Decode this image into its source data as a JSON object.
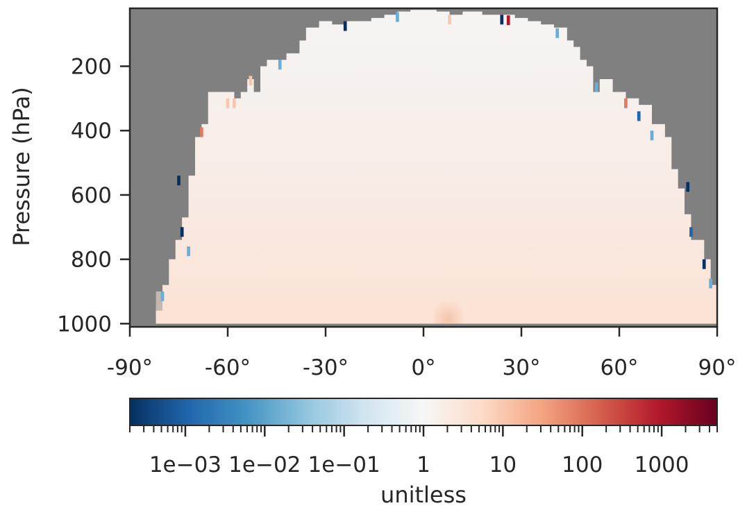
{
  "chart_data": {
    "type": "heatmap",
    "title": "",
    "xlabel": "",
    "ylabel": "Pressure (hPa)",
    "x_ticks": [
      {
        "value": -90,
        "label": "-90°"
      },
      {
        "value": -60,
        "label": "-60°"
      },
      {
        "value": -30,
        "label": "-30°"
      },
      {
        "value": 0,
        "label": "0°"
      },
      {
        "value": 30,
        "label": "30°"
      },
      {
        "value": 60,
        "label": "60°"
      },
      {
        "value": 90,
        "label": "90°"
      }
    ],
    "y_ticks": [
      {
        "value": 200,
        "label": "200"
      },
      {
        "value": 400,
        "label": "400"
      },
      {
        "value": 600,
        "label": "600"
      },
      {
        "value": 800,
        "label": "800"
      },
      {
        "value": 1000,
        "label": "1000"
      }
    ],
    "xlim": [
      -90,
      90
    ],
    "ylim": [
      1010,
      20
    ],
    "y_inverted": true,
    "missing_color": "#808080",
    "colormap": "RdBu_r",
    "colorbar": {
      "label": "unitless",
      "scale": "log",
      "range": [
        0.0002,
        5000
      ],
      "ticks": [
        {
          "value": 0.001,
          "label": "1e−03"
        },
        {
          "value": 0.01,
          "label": "1e−02"
        },
        {
          "value": 0.1,
          "label": "1e−01"
        },
        {
          "value": 1,
          "label": "1"
        },
        {
          "value": 10,
          "label": "10"
        },
        {
          "value": 100,
          "label": "100"
        },
        {
          "value": 1000,
          "label": "1000"
        }
      ]
    },
    "data_extent": {
      "latitude": [
        -82,
        90
      ],
      "top_pressure_by_latitude": [
        [
          -82,
          960
        ],
        [
          -80,
          880
        ],
        [
          -78,
          800
        ],
        [
          -76,
          740
        ],
        [
          -74,
          670
        ],
        [
          -72,
          540
        ],
        [
          -70,
          420
        ],
        [
          -68,
          380
        ],
        [
          -66,
          280
        ],
        [
          -62,
          280
        ],
        [
          -58,
          300
        ],
        [
          -56,
          280
        ],
        [
          -54,
          240
        ],
        [
          -52,
          280
        ],
        [
          -50,
          200
        ],
        [
          -48,
          180
        ],
        [
          -44,
          180
        ],
        [
          -42,
          160
        ],
        [
          -38,
          120
        ],
        [
          -36,
          80
        ],
        [
          -32,
          60
        ],
        [
          -28,
          70
        ],
        [
          -24,
          60
        ],
        [
          -16,
          50
        ],
        [
          -12,
          40
        ],
        [
          -8,
          30
        ],
        [
          -4,
          25
        ],
        [
          0,
          25
        ],
        [
          4,
          30
        ],
        [
          8,
          40
        ],
        [
          12,
          30
        ],
        [
          18,
          40
        ],
        [
          22,
          40
        ],
        [
          28,
          50
        ],
        [
          32,
          60
        ],
        [
          36,
          70
        ],
        [
          40,
          80
        ],
        [
          44,
          120
        ],
        [
          46,
          140
        ],
        [
          48,
          180
        ],
        [
          50,
          200
        ],
        [
          52,
          280
        ],
        [
          54,
          240
        ],
        [
          58,
          280
        ],
        [
          62,
          300
        ],
        [
          66,
          320
        ],
        [
          70,
          380
        ],
        [
          74,
          420
        ],
        [
          76,
          520
        ],
        [
          78,
          580
        ],
        [
          80,
          660
        ],
        [
          82,
          740
        ],
        [
          86,
          800
        ],
        [
          88,
          880
        ],
        [
          90,
          960
        ]
      ]
    },
    "features": [
      {
        "description": "near-unity ratio over most of domain",
        "value": 1
      },
      {
        "description": "ratio slightly above 1 near surface (900-1000 hPa)",
        "value": 2
      },
      {
        "description": "ratio up to ~10 near surface around 5-10°",
        "value": 8
      },
      {
        "description": "scattered low values near domain edges",
        "value": 0.001
      }
    ]
  }
}
